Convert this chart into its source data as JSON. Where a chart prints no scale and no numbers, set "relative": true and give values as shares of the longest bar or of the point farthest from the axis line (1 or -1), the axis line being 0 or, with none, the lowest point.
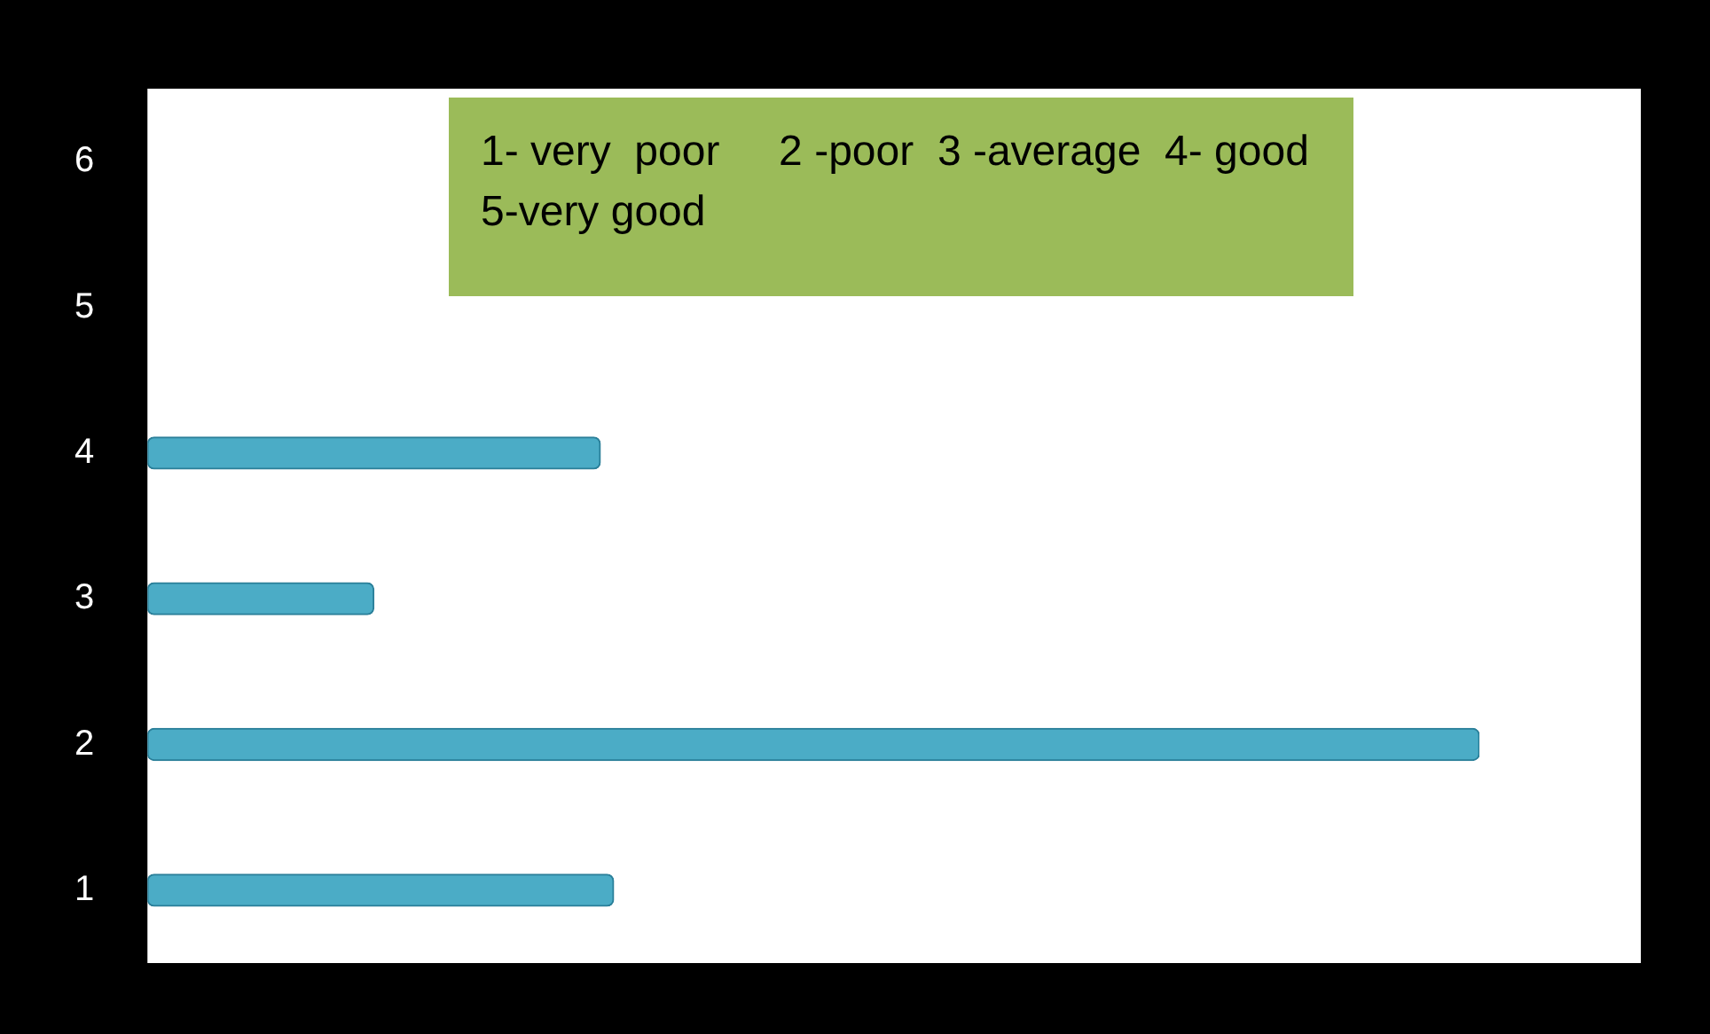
{
  "chart_data": {
    "type": "bar",
    "orientation": "horizontal",
    "relative": true,
    "categories": [
      "6",
      "5",
      "4",
      "3",
      "2",
      "1"
    ],
    "values": [
      null,
      0,
      0.34,
      0.17,
      1,
      0.35
    ],
    "color": "#4bacc6",
    "legend": false,
    "tick_labels": "y",
    "annotations": [
      "1- very  poor     2 -poor  3 -average  4- good  5-very good"
    ]
  }
}
